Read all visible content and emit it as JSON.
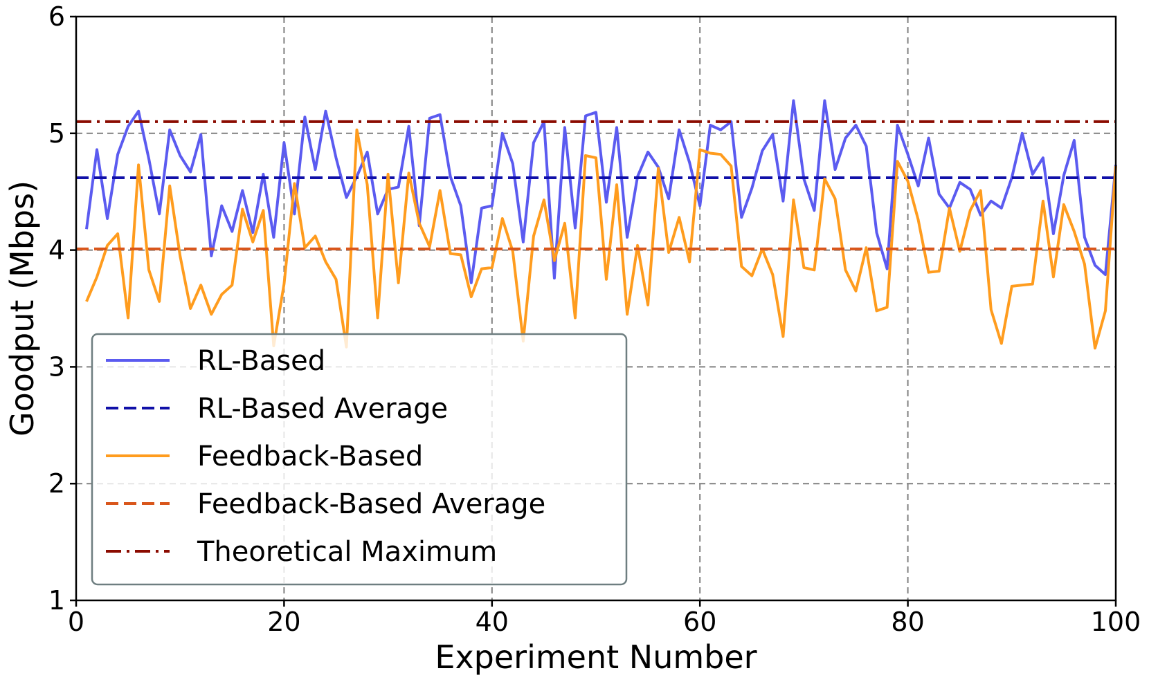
{
  "chart_data": {
    "type": "line",
    "title": "",
    "xlabel": "Experiment Number",
    "ylabel": "Goodput (Mbps)",
    "xlim": [
      0,
      100
    ],
    "ylim": [
      1,
      6
    ],
    "x_ticks": [
      "0",
      "20",
      "40",
      "60",
      "80",
      "100"
    ],
    "y_ticks": [
      "1",
      "2",
      "3",
      "4",
      "5",
      "6"
    ],
    "grid": true,
    "legend_position": "lower-left",
    "x": [
      1,
      2,
      3,
      4,
      5,
      6,
      7,
      8,
      9,
      10,
      11,
      12,
      13,
      14,
      15,
      16,
      17,
      18,
      19,
      20,
      21,
      22,
      23,
      24,
      25,
      26,
      27,
      28,
      29,
      30,
      31,
      32,
      33,
      34,
      35,
      36,
      37,
      38,
      39,
      40,
      41,
      42,
      43,
      44,
      45,
      46,
      47,
      48,
      49,
      50,
      51,
      52,
      53,
      54,
      55,
      56,
      57,
      58,
      59,
      60,
      61,
      62,
      63,
      64,
      65,
      66,
      67,
      68,
      69,
      70,
      71,
      72,
      73,
      74,
      75,
      76,
      77,
      78,
      79,
      80,
      81,
      82,
      83,
      84,
      85,
      86,
      87,
      88,
      89,
      90,
      91,
      92,
      93,
      94,
      95,
      96,
      97,
      98,
      99,
      100
    ],
    "series": [
      {
        "name": "RL-Based",
        "style": "solid",
        "color": "#5b5bf0",
        "values": [
          4.18,
          4.86,
          4.27,
          4.82,
          5.06,
          5.19,
          4.78,
          4.31,
          5.03,
          4.81,
          4.67,
          4.99,
          3.95,
          4.38,
          4.16,
          4.51,
          4.15,
          4.65,
          4.11,
          4.92,
          4.31,
          5.14,
          4.69,
          5.19,
          4.79,
          4.45,
          4.63,
          4.84,
          4.31,
          4.52,
          4.54,
          5.06,
          4.21,
          5.13,
          5.16,
          4.63,
          4.38,
          3.72,
          4.36,
          4.38,
          5.0,
          4.74,
          4.07,
          4.92,
          5.1,
          3.76,
          5.05,
          4.19,
          5.15,
          5.18,
          4.41,
          5.05,
          4.11,
          4.63,
          4.84,
          4.71,
          4.44,
          5.03,
          4.75,
          4.38,
          5.07,
          5.03,
          5.1,
          4.28,
          4.53,
          4.85,
          4.99,
          4.42,
          5.28,
          4.61,
          4.34,
          5.28,
          4.69,
          4.96,
          5.07,
          4.89,
          4.15,
          3.84,
          5.07,
          4.82,
          4.55,
          4.96,
          4.48,
          4.36,
          4.58,
          4.52,
          4.3,
          4.42,
          4.36,
          4.62,
          5.0,
          4.65,
          4.79,
          4.14,
          4.64,
          4.94,
          4.11,
          3.87,
          3.79,
          4.73
        ]
      },
      {
        "name": "RL-Based Average",
        "style": "dashed",
        "color": "#1010a8",
        "constant": 4.62
      },
      {
        "name": "Feedback-Based",
        "style": "solid",
        "color": "#ff9c1e",
        "values": [
          3.56,
          3.77,
          4.04,
          4.14,
          3.42,
          4.73,
          3.83,
          3.56,
          4.55,
          3.95,
          3.5,
          3.7,
          3.45,
          3.62,
          3.7,
          4.35,
          4.07,
          4.34,
          3.18,
          3.71,
          4.57,
          4.02,
          4.12,
          3.9,
          3.75,
          3.17,
          5.03,
          4.56,
          3.42,
          4.65,
          3.72,
          4.66,
          4.23,
          4.03,
          4.51,
          3.97,
          3.96,
          3.6,
          3.84,
          3.85,
          4.27,
          3.99,
          3.22,
          4.12,
          4.43,
          3.91,
          4.23,
          3.42,
          4.81,
          4.79,
          3.75,
          4.56,
          3.45,
          4.04,
          3.53,
          4.7,
          3.98,
          4.28,
          3.9,
          4.86,
          4.83,
          4.82,
          4.72,
          3.86,
          3.78,
          4.01,
          3.79,
          3.26,
          4.43,
          3.85,
          3.83,
          4.61,
          4.44,
          3.83,
          3.65,
          4.02,
          3.48,
          3.51,
          4.76,
          4.59,
          4.26,
          3.81,
          3.82,
          4.36,
          3.99,
          4.34,
          4.51,
          3.49,
          3.2,
          3.69,
          3.7,
          3.71,
          4.42,
          3.77,
          4.39,
          4.16,
          3.88,
          3.16,
          3.48,
          4.72
        ]
      },
      {
        "name": "Feedback-Based Average",
        "style": "dashed",
        "color": "#d9561b",
        "constant": 4.01
      },
      {
        "name": "Theoretical Maximum",
        "style": "dashdot",
        "color": "#8b0b00",
        "constant": 5.1
      }
    ]
  }
}
